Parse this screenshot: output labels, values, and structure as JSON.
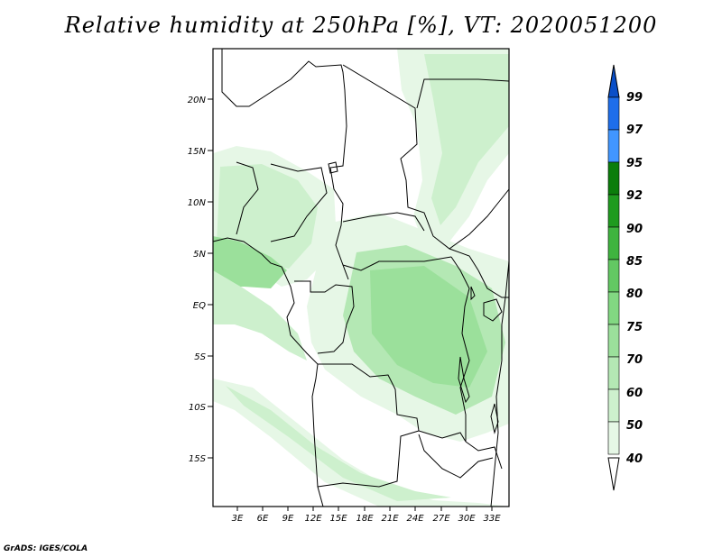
{
  "title": "Relative humidity at 250hPa [%], VT: 2020051200",
  "credit": "GrADS: IGES/COLA",
  "map": {
    "lat_ticks": [
      "20N",
      "15N",
      "10N",
      "5N",
      "EQ",
      "5S",
      "10S",
      "15S"
    ],
    "lon_ticks": [
      "3E",
      "6E",
      "9E",
      "12E",
      "15E",
      "18E",
      "21E",
      "24E",
      "27E",
      "30E",
      "33E"
    ]
  },
  "colorbar": {
    "levels": [
      "40",
      "50",
      "60",
      "70",
      "75",
      "80",
      "85",
      "90",
      "92",
      "95",
      "97",
      "99"
    ],
    "colors": [
      "#ffffff",
      "#e6f7e6",
      "#cdf0cd",
      "#b4e8b4",
      "#9be09b",
      "#82d882",
      "#63c863",
      "#3fb43f",
      "#1f9b1f",
      "#0b7d0b",
      "#4196ff",
      "#1e6eeb",
      "#0a4fc8"
    ]
  }
}
